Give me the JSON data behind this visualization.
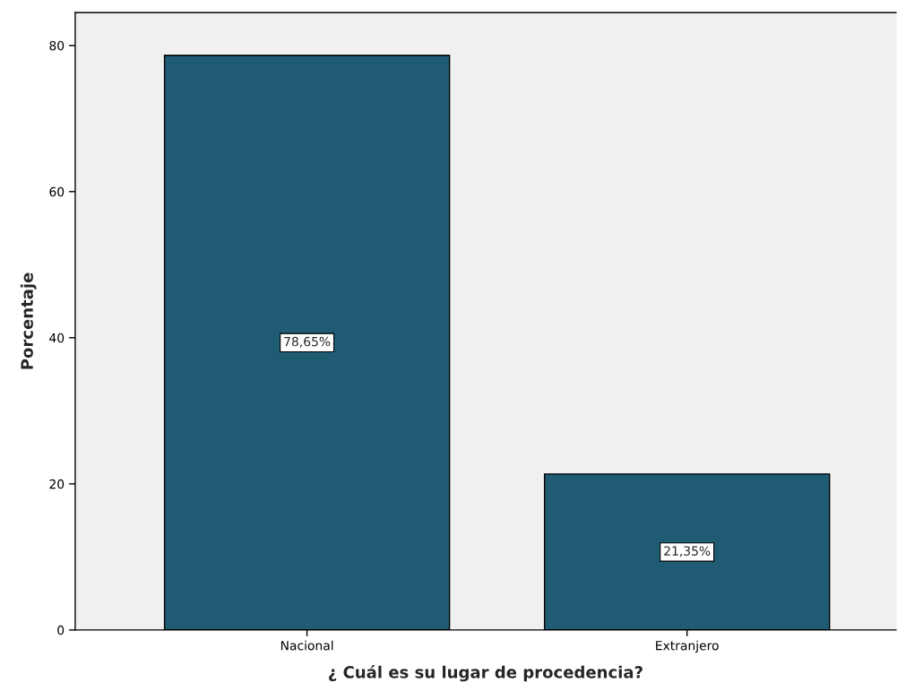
{
  "chart_data": {
    "type": "bar",
    "xlabel": "¿ Cuál es su lugar de procedencia?",
    "ylabel": "Porcentaje",
    "categories": [
      "Nacional",
      "Extranjero"
    ],
    "values": [
      78.65,
      21.35
    ],
    "value_labels": [
      "78,65%",
      "21,35%"
    ],
    "color": "#1f5c73",
    "ylim": [
      0,
      84.5
    ],
    "yticks": [
      0,
      20,
      40,
      60,
      80
    ],
    "grid": false,
    "legend": false
  }
}
